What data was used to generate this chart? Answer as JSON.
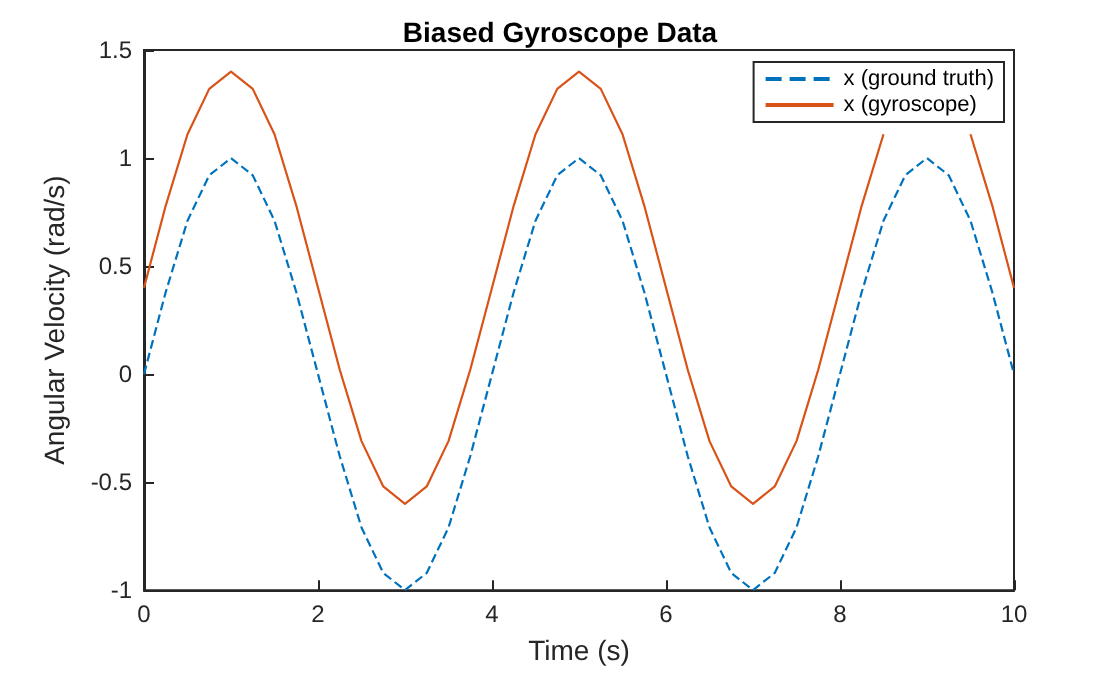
{
  "chart_data": {
    "type": "line",
    "title": "Biased Gyroscope Data",
    "xlabel": "Time (s)",
    "ylabel": "Angular Velocity (rad/s)",
    "x": [
      0,
      0.25,
      0.5,
      0.75,
      1,
      1.25,
      1.5,
      1.75,
      2,
      2.25,
      2.5,
      2.75,
      3,
      3.25,
      3.5,
      3.75,
      4,
      4.25,
      4.5,
      4.75,
      5,
      5.25,
      5.5,
      5.75,
      6,
      6.25,
      6.5,
      6.75,
      7,
      7.25,
      7.5,
      7.75,
      8,
      8.25,
      8.5,
      8.75,
      9,
      9.25,
      9.5,
      9.75,
      10
    ],
    "series": [
      {
        "name": "x (ground truth)",
        "color": "#0072bd",
        "line_style": "dashed",
        "values": [
          0,
          0.38,
          0.71,
          0.92,
          1,
          0.92,
          0.71,
          0.38,
          0,
          -0.38,
          -0.71,
          -0.92,
          -1,
          -0.92,
          -0.71,
          -0.38,
          0,
          0.38,
          0.71,
          0.92,
          1,
          0.92,
          0.71,
          0.38,
          0,
          -0.38,
          -0.71,
          -0.92,
          -1,
          -0.92,
          -0.71,
          -0.38,
          0,
          0.38,
          0.71,
          0.92,
          1,
          0.92,
          0.71,
          0.38,
          0
        ]
      },
      {
        "name": "x (gyroscope)",
        "color": "#d95319",
        "line_style": "solid",
        "values": [
          0.4,
          0.78,
          1.11,
          1.32,
          1.4,
          1.32,
          1.11,
          0.78,
          0.4,
          0.02,
          -0.31,
          -0.52,
          -0.6,
          -0.52,
          -0.31,
          0.02,
          0.4,
          0.78,
          1.11,
          1.32,
          1.4,
          1.32,
          1.11,
          0.78,
          0.4,
          0.02,
          -0.31,
          -0.52,
          -0.6,
          -0.52,
          -0.31,
          0.02,
          0.4,
          0.78,
          1.11,
          null,
          null,
          null,
          1.11,
          0.78,
          0.4
        ]
      }
    ],
    "xlim": [
      0,
      10
    ],
    "xticks": [
      0,
      2,
      4,
      6,
      8,
      10
    ],
    "ylim": [
      -1,
      1.5
    ],
    "yticks": [
      -1,
      -0.5,
      0,
      0.5,
      1,
      1.5
    ],
    "grid": false,
    "legend": "top right",
    "marker": "none"
  }
}
